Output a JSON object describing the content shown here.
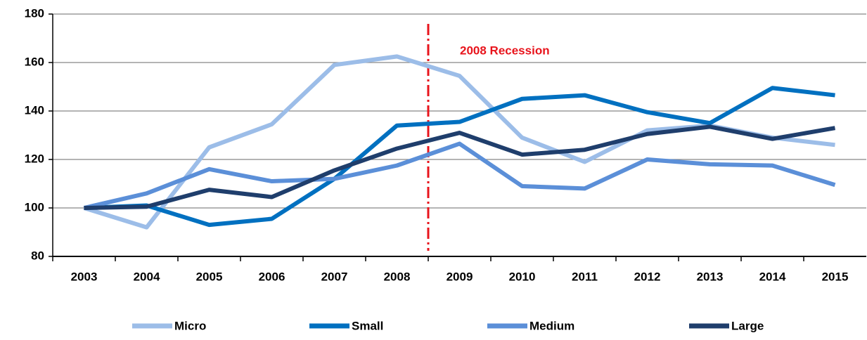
{
  "chart_data": {
    "type": "line",
    "categories": [
      "2003",
      "2004",
      "2005",
      "2006",
      "2007",
      "2008",
      "2009",
      "2010",
      "2011",
      "2012",
      "2013",
      "2014",
      "2015"
    ],
    "series": [
      {
        "name": "Micro",
        "color": "#9cbde8",
        "values": [
          100,
          92,
          125,
          134.5,
          159,
          162.5,
          154.5,
          129,
          119,
          132,
          134,
          129,
          126
        ]
      },
      {
        "name": "Small",
        "color": "#0070c0",
        "values": [
          100,
          101,
          93,
          95.5,
          112,
          134,
          135.5,
          145,
          146.5,
          139.5,
          135,
          149.5,
          146.5
        ]
      },
      {
        "name": "Medium",
        "color": "#5b8fd8",
        "values": [
          100,
          106,
          116,
          111,
          112,
          117.5,
          126.5,
          109,
          108,
          120,
          118,
          117.5,
          109.5
        ]
      },
      {
        "name": "Large",
        "color": "#1f3e6c",
        "values": [
          100,
          100.5,
          107.5,
          104.5,
          115.5,
          124.5,
          131,
          122,
          124,
          130.5,
          133.5,
          128.5,
          133
        ]
      }
    ],
    "ylim": [
      80,
      180
    ],
    "yticks": [
      80,
      100,
      120,
      140,
      160,
      180
    ],
    "grid": true,
    "annotation": {
      "text": "2008 Recession",
      "after": "2008",
      "color": "#e8141c"
    },
    "legend": "bottom"
  }
}
